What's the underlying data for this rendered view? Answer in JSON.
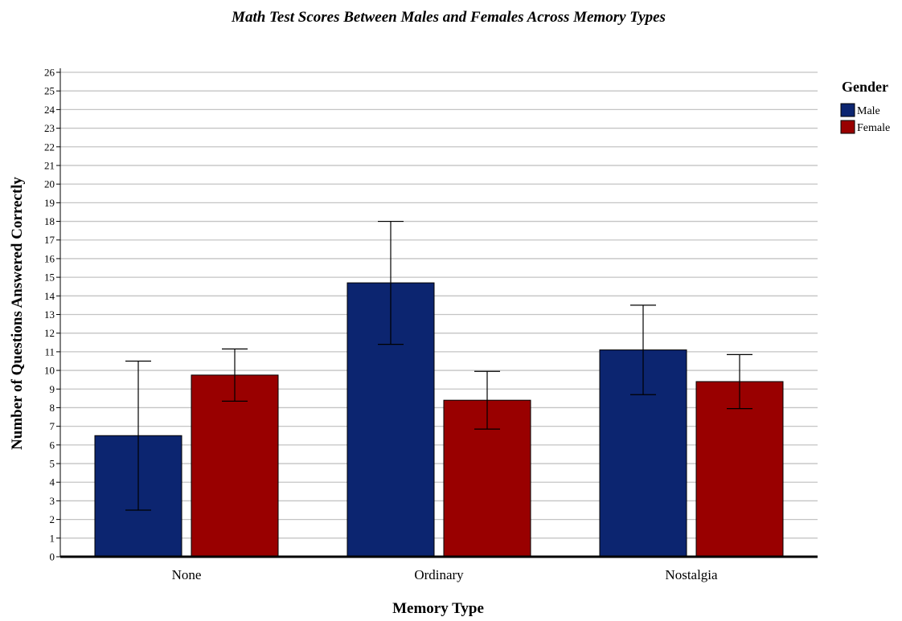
{
  "chart_data": {
    "type": "bar",
    "title": "Math Test Scores Between Males and Females Across Memory Types",
    "xlabel": "Memory Type",
    "ylabel": "Number of Questions Answered Correctly",
    "categories": [
      "None",
      "Ordinary",
      "Nostalgia"
    ],
    "ylim": [
      0,
      26
    ],
    "yticks": [
      0,
      1,
      2,
      3,
      4,
      5,
      6,
      7,
      8,
      9,
      10,
      11,
      12,
      13,
      14,
      15,
      16,
      17,
      18,
      19,
      20,
      21,
      22,
      23,
      24,
      25,
      26
    ],
    "grid": true,
    "legend": {
      "title": "Gender",
      "placement": "right"
    },
    "series": [
      {
        "name": "Male",
        "color": "#0c2570",
        "values": [
          6.5,
          14.7,
          11.1
        ],
        "error_low": [
          2.5,
          11.4,
          8.7
        ],
        "error_high": [
          10.5,
          18.0,
          13.5
        ]
      },
      {
        "name": "Female",
        "color": "#990000",
        "values": [
          9.75,
          8.4,
          9.4
        ],
        "error_low": [
          8.35,
          6.85,
          7.95
        ],
        "error_high": [
          11.15,
          9.95,
          10.85
        ]
      }
    ]
  }
}
